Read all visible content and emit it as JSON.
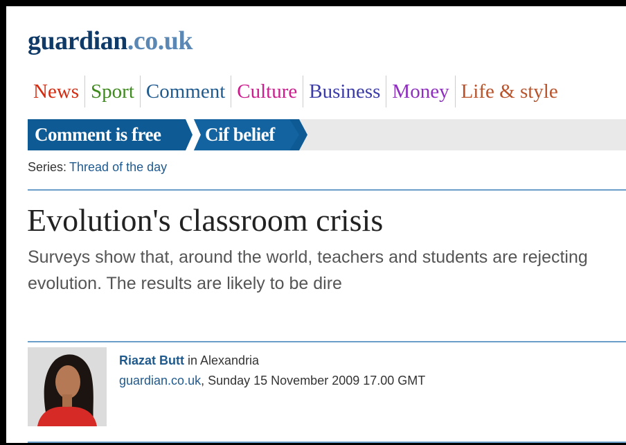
{
  "logo": {
    "name": "guardian",
    "domain": ".co.uk"
  },
  "nav": [
    {
      "label": "News",
      "color": "#d42a10"
    },
    {
      "label": "Sport",
      "color": "#3f8a1e"
    },
    {
      "label": "Comment",
      "color": "#1f5a8f"
    },
    {
      "label": "Culture",
      "color": "#cc1c8d"
    },
    {
      "label": "Business",
      "color": "#3a3aa8"
    },
    {
      "label": "Money",
      "color": "#8f2fc0"
    },
    {
      "label": "Life & style",
      "color": "#b9532c"
    }
  ],
  "breadcrumb": [
    "Comment is free",
    "Cif belief"
  ],
  "series": {
    "label": "Series:",
    "name": "Thread of the day"
  },
  "headline": "Evolution's classroom crisis",
  "standfirst": "Surveys show that, around the world, teachers and students are rejecting evolution. The results are likely to be dire",
  "byline": {
    "author": "Riazat Butt",
    "location": "in Alexandria",
    "site": "guardian.co.uk",
    "date": ", Sunday 15 November 2009 17.00 GMT"
  }
}
